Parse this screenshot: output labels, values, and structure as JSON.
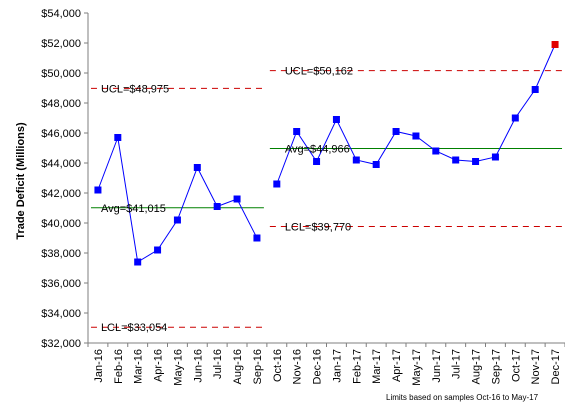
{
  "chart_data": {
    "type": "line",
    "ylabel": "Trade Deficit (Millions)",
    "ylim": [
      32000,
      54000
    ],
    "ytick_step": 2000,
    "yticks": [
      "$32,000",
      "$34,000",
      "$36,000",
      "$38,000",
      "$40,000",
      "$42,000",
      "$44,000",
      "$46,000",
      "$48,000",
      "$50,000",
      "$52,000",
      "$54,000"
    ],
    "categories": [
      "Jan-16",
      "Feb-16",
      "Mar-16",
      "Apr-16",
      "May-16",
      "Jun-16",
      "Jul-16",
      "Aug-16",
      "Sep-16",
      "Oct-16",
      "Nov-16",
      "Dec-16",
      "Jan-17",
      "Feb-17",
      "Mar-17",
      "Apr-17",
      "May-17",
      "Jun-17",
      "Jul-17",
      "Aug-17",
      "Sep-17",
      "Oct-17",
      "Nov-17",
      "Dec-17"
    ],
    "values": [
      42200,
      45700,
      37400,
      38200,
      40200,
      43700,
      41100,
      41600,
      39000,
      42600,
      46100,
      44100,
      46900,
      44200,
      43900,
      46100,
      45800,
      44800,
      44200,
      44100,
      44400,
      47000,
      48900,
      51900
    ],
    "segments": [
      [
        0,
        8
      ],
      [
        9,
        23
      ]
    ],
    "point_color": "#0000ff",
    "line_color": "#0000ff",
    "highlight": {
      "index": 23,
      "color": "#e00000"
    },
    "phases": [
      {
        "start": 0,
        "end": 8,
        "ucl": 48975,
        "avg": 41015,
        "lcl": 33054,
        "ucl_label": "UCL=$48,975",
        "avg_label": "Avg=$41,015",
        "lcl_label": "LCL=$33,054"
      },
      {
        "start": 9,
        "end": 23,
        "ucl": 50162,
        "avg": 44966,
        "lcl": 39770,
        "ucl_label": "UCL=$50,162",
        "avg_label": "Avg=$44,966",
        "lcl_label": "LCL=$39,770"
      }
    ],
    "limit_color": "#cc0000",
    "avg_color": "#008000",
    "footnote": "Limits based on samples Oct-16 to May-17"
  }
}
